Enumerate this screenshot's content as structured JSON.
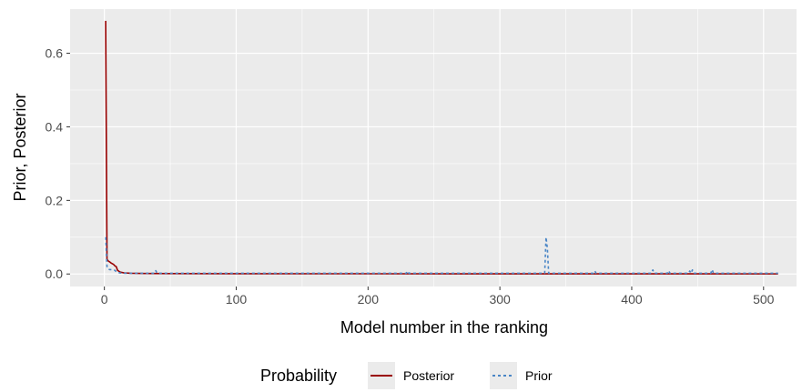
{
  "chart_data": {
    "type": "line",
    "title": "",
    "xlabel": "Model number in the ranking",
    "ylabel": "Prior, Posterior",
    "xlim": [
      -26,
      525
    ],
    "ylim": [
      -0.034,
      0.72
    ],
    "x_ticks": [
      0,
      100,
      200,
      300,
      400,
      500
    ],
    "x_tick_labels": [
      "0",
      "100",
      "200",
      "300",
      "400",
      "500"
    ],
    "y_ticks": [
      0.0,
      0.2,
      0.4,
      0.6
    ],
    "y_tick_labels": [
      "0.0",
      "0.2",
      "0.4",
      "0.6"
    ],
    "grid": true,
    "legend_position": "bottom",
    "legend_title": "Probability",
    "series": [
      {
        "name": "Posterior",
        "color": "#990000",
        "style": "solid",
        "x": [
          1,
          2,
          3,
          4,
          5,
          6,
          7,
          8,
          9,
          10,
          12,
          15,
          20,
          30,
          50,
          100,
          200,
          300,
          400,
          511
        ],
        "y": [
          0.688,
          0.04,
          0.035,
          0.033,
          0.03,
          0.028,
          0.026,
          0.022,
          0.02,
          0.01,
          0.005,
          0.003,
          0.002,
          0.0015,
          0.001,
          0.0008,
          0.0006,
          0.0005,
          0.0004,
          0.0003
        ]
      },
      {
        "name": "Prior",
        "color": "#4a86c6",
        "style": "dashed",
        "x": [
          1,
          2,
          3,
          4,
          5,
          6,
          7,
          8,
          9,
          10,
          12,
          15,
          20,
          38,
          39,
          40,
          100,
          229,
          230,
          231,
          334,
          335,
          336,
          337,
          371,
          372,
          373,
          415,
          416,
          417,
          427,
          428,
          429,
          443,
          444,
          445,
          446,
          447,
          460,
          461,
          462,
          511
        ],
        "y": [
          0.1,
          0.02,
          0.013,
          0.012,
          0.012,
          0.012,
          0.011,
          0.01,
          0.006,
          0.004,
          0.003,
          0.002,
          0.002,
          0.002,
          0.009,
          0.002,
          0.002,
          0.002,
          0.008,
          0.002,
          0.002,
          0.1,
          0.07,
          0.002,
          0.002,
          0.008,
          0.002,
          0.002,
          0.011,
          0.002,
          0.002,
          0.009,
          0.002,
          0.002,
          0.008,
          0.002,
          0.011,
          0.002,
          0.002,
          0.012,
          0.002,
          0.002
        ]
      }
    ]
  }
}
